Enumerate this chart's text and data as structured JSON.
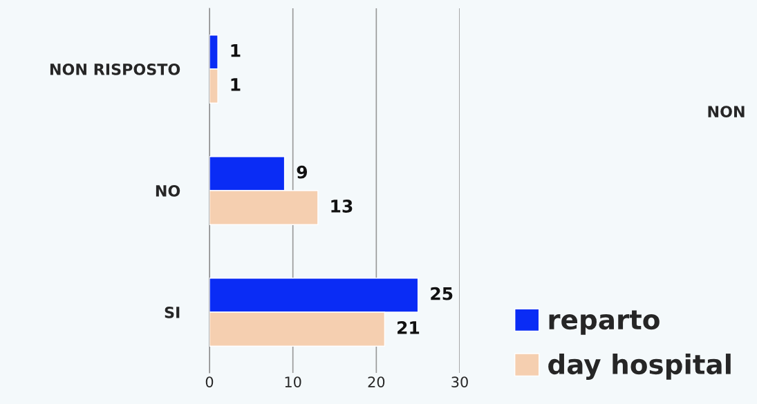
{
  "chart_data": {
    "type": "bar",
    "orientation": "horizontal",
    "categories": [
      "NON RISPOSTO",
      "NO",
      "SI"
    ],
    "series": [
      {
        "name": "reparto",
        "color": "#0a2cf5",
        "values": [
          1,
          9,
          25
        ]
      },
      {
        "name": "day hospital",
        "color": "#f5cfb0",
        "values": [
          1,
          13,
          21
        ]
      }
    ],
    "xlim": [
      0,
      30
    ],
    "xticks": [
      0,
      10,
      20,
      30
    ],
    "grid": "x",
    "legend": "bottom right",
    "data_labels": true,
    "annotations": [
      "NON"
    ]
  }
}
